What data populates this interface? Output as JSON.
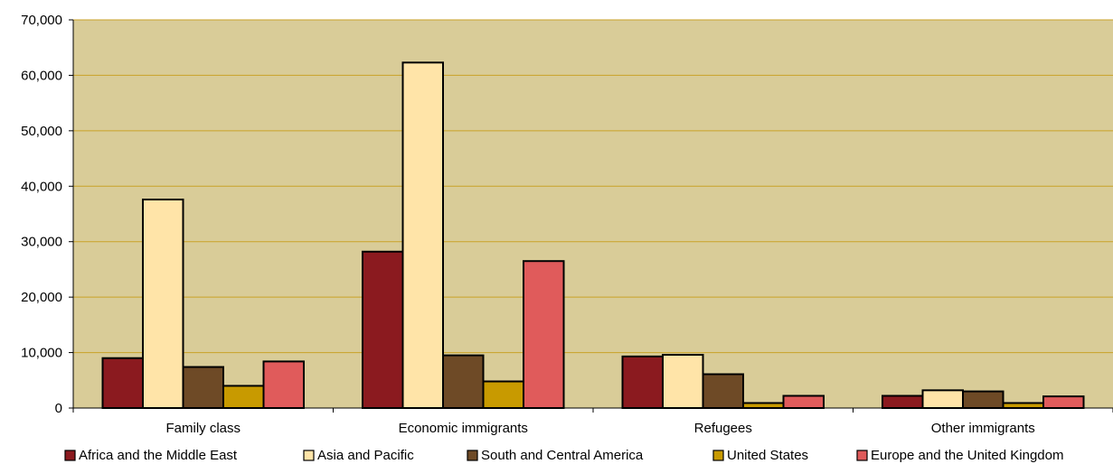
{
  "chart_data": {
    "type": "bar",
    "categories": [
      "Family class",
      "Economic immigrants",
      "Refugees",
      "Other immigrants"
    ],
    "series": [
      {
        "name": "Africa and the Middle East",
        "color": "#8B1A1F",
        "values": [
          9000,
          28200,
          9300,
          2200
        ]
      },
      {
        "name": "Asia and Pacific",
        "color": "#FFE4A8",
        "values": [
          37600,
          62300,
          9600,
          3200
        ]
      },
      {
        "name": "South and Central America",
        "color": "#6E4A26",
        "values": [
          7400,
          9500,
          6100,
          3000
        ]
      },
      {
        "name": "United States",
        "color": "#C89A00",
        "values": [
          4000,
          4800,
          900,
          900
        ]
      },
      {
        "name": "Europe and the United Kingdom",
        "color": "#E05B5B",
        "values": [
          8400,
          26500,
          2200,
          2100
        ]
      }
    ],
    "ylim": [
      0,
      70000
    ],
    "yticks": [
      0,
      10000,
      20000,
      30000,
      40000,
      50000,
      60000,
      70000
    ],
    "ytick_labels": [
      "0",
      "10,000",
      "20,000",
      "30,000",
      "40,000",
      "50,000",
      "60,000",
      "70,000"
    ],
    "plot_background": "#D9CC98",
    "gridline_color": "#C9A227",
    "grid": true,
    "legend_position": "bottom",
    "title": "",
    "xlabel": "",
    "ylabel": ""
  }
}
